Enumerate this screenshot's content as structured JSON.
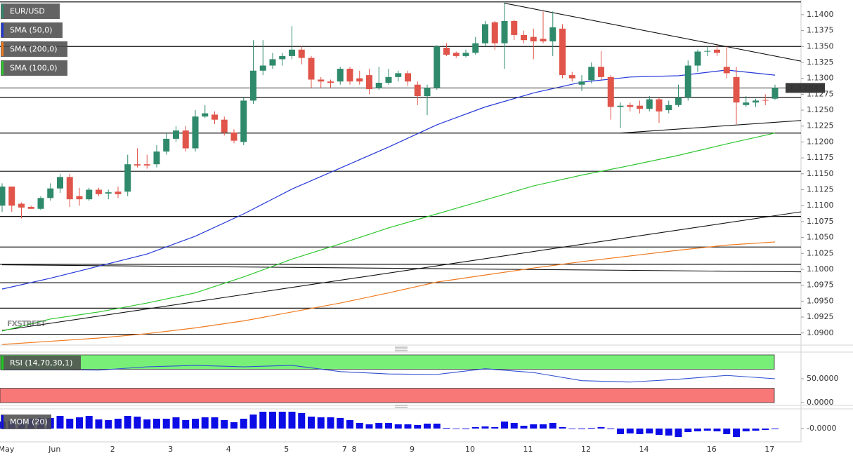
{
  "chart_data": [
    {
      "type": "candlestick",
      "symbol": "EUR/USD",
      "up_color": "#2f8a6c",
      "down_color": "#e05449",
      "categories": [
        "May",
        null,
        null,
        null,
        null,
        "Jun",
        null,
        null,
        null,
        null,
        null,
        "2",
        null,
        null,
        null,
        null,
        null,
        "3",
        null,
        null,
        null,
        null,
        null,
        "4",
        null,
        null,
        null,
        null,
        null,
        "5",
        null,
        null,
        null,
        null,
        null,
        "7",
        "8",
        null,
        null,
        null,
        null,
        null,
        "9",
        null,
        null,
        null,
        null,
        null,
        "10",
        null,
        null,
        null,
        null,
        null,
        "11",
        null,
        null,
        null,
        null,
        null,
        "12",
        null,
        null,
        null,
        null,
        null,
        "14",
        null,
        null,
        null,
        null,
        null,
        null,
        "16",
        null,
        null,
        null,
        null,
        null,
        "17",
        null
      ],
      "open": [
        1.11,
        1.113,
        1.1103,
        1.1098,
        1.1095,
        1.1112,
        1.1127,
        1.1145,
        1.1115,
        1.111,
        1.1125,
        1.1119,
        1.1122,
        1.1122,
        1.1165,
        1.1165,
        1.1165,
        1.1185,
        1.1205,
        1.1218,
        1.119,
        1.124,
        1.1243,
        1.1235,
        1.1215,
        1.12,
        1.1265,
        1.1312,
        1.132,
        1.133,
        1.1335,
        1.1345,
        1.1332,
        1.1298,
        1.1295,
        1.1295,
        1.1315,
        1.13,
        1.1305,
        1.1285,
        1.1293,
        1.1302,
        1.1308,
        1.129,
        1.1272,
        1.1285,
        1.1348,
        1.134,
        1.1335,
        1.134,
        1.1355,
        1.1388,
        1.1355,
        1.139,
        1.1368,
        1.1365,
        1.1362,
        1.1358,
        1.1378,
        1.1305,
        1.129,
        1.1297,
        1.1318,
        1.1302,
        1.1255,
        1.1258,
        1.1257,
        1.1252,
        1.1267,
        1.125,
        1.1258,
        1.127,
        1.132,
        1.1342,
        1.1345,
        1.1318,
        1.1302,
        1.1258,
        1.1262,
        1.1266,
        1.1268
      ],
      "high": [
        1.1135,
        1.113,
        1.1105,
        1.11,
        1.1115,
        1.1135,
        1.115,
        1.115,
        1.1128,
        1.1128,
        1.1128,
        1.1125,
        1.113,
        1.118,
        1.119,
        1.118,
        1.1195,
        1.1215,
        1.1225,
        1.1225,
        1.125,
        1.1258,
        1.1248,
        1.124,
        1.122,
        1.127,
        1.136,
        1.136,
        1.134,
        1.134,
        1.1382,
        1.135,
        1.1335,
        1.1302,
        1.1298,
        1.1318,
        1.1318,
        1.1312,
        1.1315,
        1.1318,
        1.1315,
        1.1312,
        1.1312,
        1.1295,
        1.129,
        1.1352,
        1.1355,
        1.1342,
        1.1345,
        1.1365,
        1.139,
        1.139,
        1.142,
        1.1392,
        1.1375,
        1.1378,
        1.1405,
        1.1405,
        1.1385,
        1.131,
        1.1305,
        1.1325,
        1.1343,
        1.1305,
        1.1262,
        1.1262,
        1.1265,
        1.1272,
        1.127,
        1.1265,
        1.129,
        1.1328,
        1.1345,
        1.135,
        1.1352,
        1.135,
        1.1318,
        1.1272,
        1.1268,
        1.1275,
        1.129
      ],
      "low": [
        1.109,
        1.109,
        1.108,
        1.1095,
        1.1093,
        1.1108,
        1.112,
        1.1098,
        1.11,
        1.1108,
        1.1115,
        1.111,
        1.1112,
        1.1115,
        1.116,
        1.1158,
        1.116,
        1.118,
        1.12,
        1.1185,
        1.1185,
        1.1238,
        1.1228,
        1.121,
        1.1198,
        1.1195,
        1.126,
        1.1305,
        1.1315,
        1.132,
        1.133,
        1.1322,
        1.1285,
        1.1285,
        1.1285,
        1.129,
        1.129,
        1.129,
        1.1275,
        1.1282,
        1.129,
        1.1295,
        1.1288,
        1.1258,
        1.1242,
        1.1282,
        1.1335,
        1.1332,
        1.1333,
        1.1337,
        1.135,
        1.1345,
        1.1315,
        1.136,
        1.1355,
        1.133,
        1.1355,
        1.1335,
        1.13,
        1.1295,
        1.128,
        1.1292,
        1.1298,
        1.1235,
        1.1222,
        1.1248,
        1.1245,
        1.1248,
        1.123,
        1.1245,
        1.1255,
        1.1265,
        1.131,
        1.1335,
        1.1335,
        1.13,
        1.1228,
        1.1255,
        1.1255,
        1.1258,
        1.1266
      ],
      "close": [
        1.113,
        1.11,
        1.1097,
        1.1095,
        1.1112,
        1.1127,
        1.1145,
        1.111,
        1.111,
        1.1125,
        1.1118,
        1.1121,
        1.1118,
        1.1165,
        1.1163,
        1.1163,
        1.1185,
        1.1205,
        1.1218,
        1.119,
        1.124,
        1.1245,
        1.1235,
        1.1215,
        1.1202,
        1.1265,
        1.1312,
        1.132,
        1.133,
        1.1335,
        1.1345,
        1.1332,
        1.1298,
        1.1295,
        1.1293,
        1.1315,
        1.1295,
        1.1295,
        1.1283,
        1.1293,
        1.1302,
        1.1308,
        1.1295,
        1.1272,
        1.1285,
        1.135,
        1.1337,
        1.1335,
        1.134,
        1.1355,
        1.1385,
        1.1355,
        1.139,
        1.1368,
        1.136,
        1.1358,
        1.1358,
        1.138,
        1.1305,
        1.13,
        1.1295,
        1.1318,
        1.1302,
        1.1255,
        1.1257,
        1.1255,
        1.1252,
        1.1267,
        1.1248,
        1.1258,
        1.127,
        1.132,
        1.1342,
        1.1343,
        1.134,
        1.1308,
        1.1262,
        1.1262,
        1.1265,
        1.1265,
        1.1285
      ],
      "series": [
        {
          "name": "SMA (50,0)",
          "color": "#2438d8",
          "x": [
            0,
            5,
            10,
            15,
            20,
            25,
            30,
            35,
            40,
            45,
            50,
            55,
            60,
            65,
            70,
            75,
            80
          ],
          "values": [
            1.0969,
            1.0986,
            1.1005,
            1.1024,
            1.1052,
            1.1087,
            1.1126,
            1.1159,
            1.1192,
            1.1227,
            1.1255,
            1.1277,
            1.1294,
            1.1302,
            1.1304,
            1.1313,
            1.1305
          ]
        },
        {
          "name": "SMA (200,0)",
          "color": "#f07a1e",
          "x": [
            0,
            5,
            10,
            15,
            20,
            25,
            30,
            35,
            40,
            45,
            50,
            55,
            60,
            65,
            70,
            75,
            80
          ],
          "values": [
            1.0882,
            1.0887,
            1.0892,
            1.0899,
            1.0908,
            1.0919,
            1.0933,
            1.0947,
            1.0963,
            1.098,
            1.0991,
            1.1002,
            1.1012,
            1.1021,
            1.103,
            1.1038,
            1.1043
          ]
        },
        {
          "name": "SMA (100,0)",
          "color": "#2fc62f",
          "x": [
            0,
            5,
            10,
            15,
            20,
            25,
            30,
            35,
            40,
            45,
            50,
            55,
            60,
            65,
            70,
            75,
            80
          ],
          "values": [
            1.0903,
            1.0922,
            1.0933,
            1.0947,
            1.0963,
            1.0988,
            1.1016,
            1.104,
            1.1065,
            1.1087,
            1.1109,
            1.1131,
            1.1148,
            1.1163,
            1.1179,
            1.1197,
            1.1214
          ]
        }
      ],
      "levels": [
        1.142,
        1.135,
        1.127,
        1.1214,
        1.1154,
        1.1083,
        1.1035,
        1.1008,
        1.0979,
        1.0939,
        1.0898
      ],
      "trendlines": [
        {
          "x": [
            52,
            83
          ],
          "values": [
            1.1418,
            1.1326
          ]
        },
        {
          "x": [
            64,
            83
          ],
          "values": [
            1.1214,
            1.1234
          ]
        },
        {
          "x": [
            0,
            83
          ],
          "values": [
            1.0904,
            1.1091
          ]
        },
        {
          "x": [
            0,
            83
          ],
          "values": [
            1.1007,
            1.0996
          ]
        }
      ],
      "last_price": 1.12849,
      "watermark": "FXSTREET",
      "ylim": [
        1.0881,
        1.1423
      ],
      "yticks": [
        {
          "value": 1.09,
          "label": "1.0900"
        },
        {
          "value": 1.0925,
          "label": "1.0925"
        },
        {
          "value": 1.095,
          "label": "1.0950"
        },
        {
          "value": 1.0975,
          "label": "1.0975"
        },
        {
          "value": 1.1,
          "label": "1.1000"
        },
        {
          "value": 1.1025,
          "label": "1.1025"
        },
        {
          "value": 1.105,
          "label": "1.1050"
        },
        {
          "value": 1.1075,
          "label": "1.1075"
        },
        {
          "value": 1.11,
          "label": "1.1100"
        },
        {
          "value": 1.1125,
          "label": "1.1125"
        },
        {
          "value": 1.115,
          "label": "1.1150"
        },
        {
          "value": 1.1175,
          "label": "1.1175"
        },
        {
          "value": 1.12,
          "label": "1.1200"
        },
        {
          "value": 1.1225,
          "label": "1.1225"
        },
        {
          "value": 1.125,
          "label": "1.1250"
        },
        {
          "value": 1.1275,
          "label": "1.1275"
        },
        {
          "value": 1.13,
          "label": "1.1300"
        },
        {
          "value": 1.1325,
          "label": "1.1325"
        },
        {
          "value": 1.135,
          "label": "1.1350"
        },
        {
          "value": 1.1375,
          "label": "1.1375"
        },
        {
          "value": 1.14,
          "label": "1.1400"
        }
      ]
    },
    {
      "type": "rsi",
      "name": "RSI (14,70,30,1)",
      "color": "#2f4fd0",
      "x": [
        0,
        5,
        10,
        15,
        20,
        25,
        30,
        35,
        40,
        45,
        50,
        55,
        60,
        65,
        70,
        75,
        80
      ],
      "values": [
        69,
        69,
        68,
        75,
        78,
        75,
        78,
        65,
        60,
        59,
        71,
        63,
        46,
        43,
        49,
        57,
        50
      ],
      "bands": [
        {
          "range": [
            70,
            100
          ],
          "color": "#78f078"
        },
        {
          "range": [
            0,
            30
          ],
          "color": "#f87878"
        }
      ],
      "ylim": [
        0,
        100
      ],
      "yticks": [
        {
          "value": 50,
          "label": "50.0000"
        },
        {
          "value": 0,
          "label": "0.0000"
        }
      ]
    },
    {
      "type": "momentum",
      "name": "MOM (20)",
      "color": "#0c0ce6",
      "values": [
        0.001,
        0.0011,
        0.0012,
        0.0014,
        0.0015,
        0.0015,
        0.0018,
        0.0014,
        0.0016,
        0.0018,
        0.0013,
        0.0012,
        0.0014,
        0.0018,
        0.0017,
        0.0013,
        0.0014,
        0.0014,
        0.0016,
        0.0012,
        0.0014,
        0.0016,
        0.0016,
        0.0012,
        0.0009,
        0.0014,
        0.002,
        0.0024,
        0.0024,
        0.0024,
        0.0024,
        0.0022,
        0.0017,
        0.0016,
        0.0016,
        0.0015,
        0.0012,
        0.0008,
        0.0006,
        0.0008,
        0.0008,
        0.0006,
        0.0006,
        0.0005,
        0.0007,
        0.0007,
        0.0001,
        0,
        -0.0001,
        0.0002,
        0.0003,
        0.0002,
        0.001,
        0.0008,
        0.0004,
        0.0006,
        0.0006,
        0.0008,
        0.0002,
        0,
        -0.0001,
        0.0001,
        0.0002,
        -0.0001,
        -0.0008,
        -0.0007,
        -0.0008,
        -0.0007,
        -0.0009,
        -0.001,
        -0.0012,
        -0.0005,
        -0.0004,
        -0.0003,
        -0.0004,
        -0.0008,
        -0.0012,
        -0.0004,
        -0.0003,
        -0.0002,
        -0.0001
      ],
      "ylim": [
        -0.0017,
        0.0026
      ],
      "yticks": [
        {
          "value": 0,
          "label": "-0.0000"
        }
      ]
    }
  ]
}
